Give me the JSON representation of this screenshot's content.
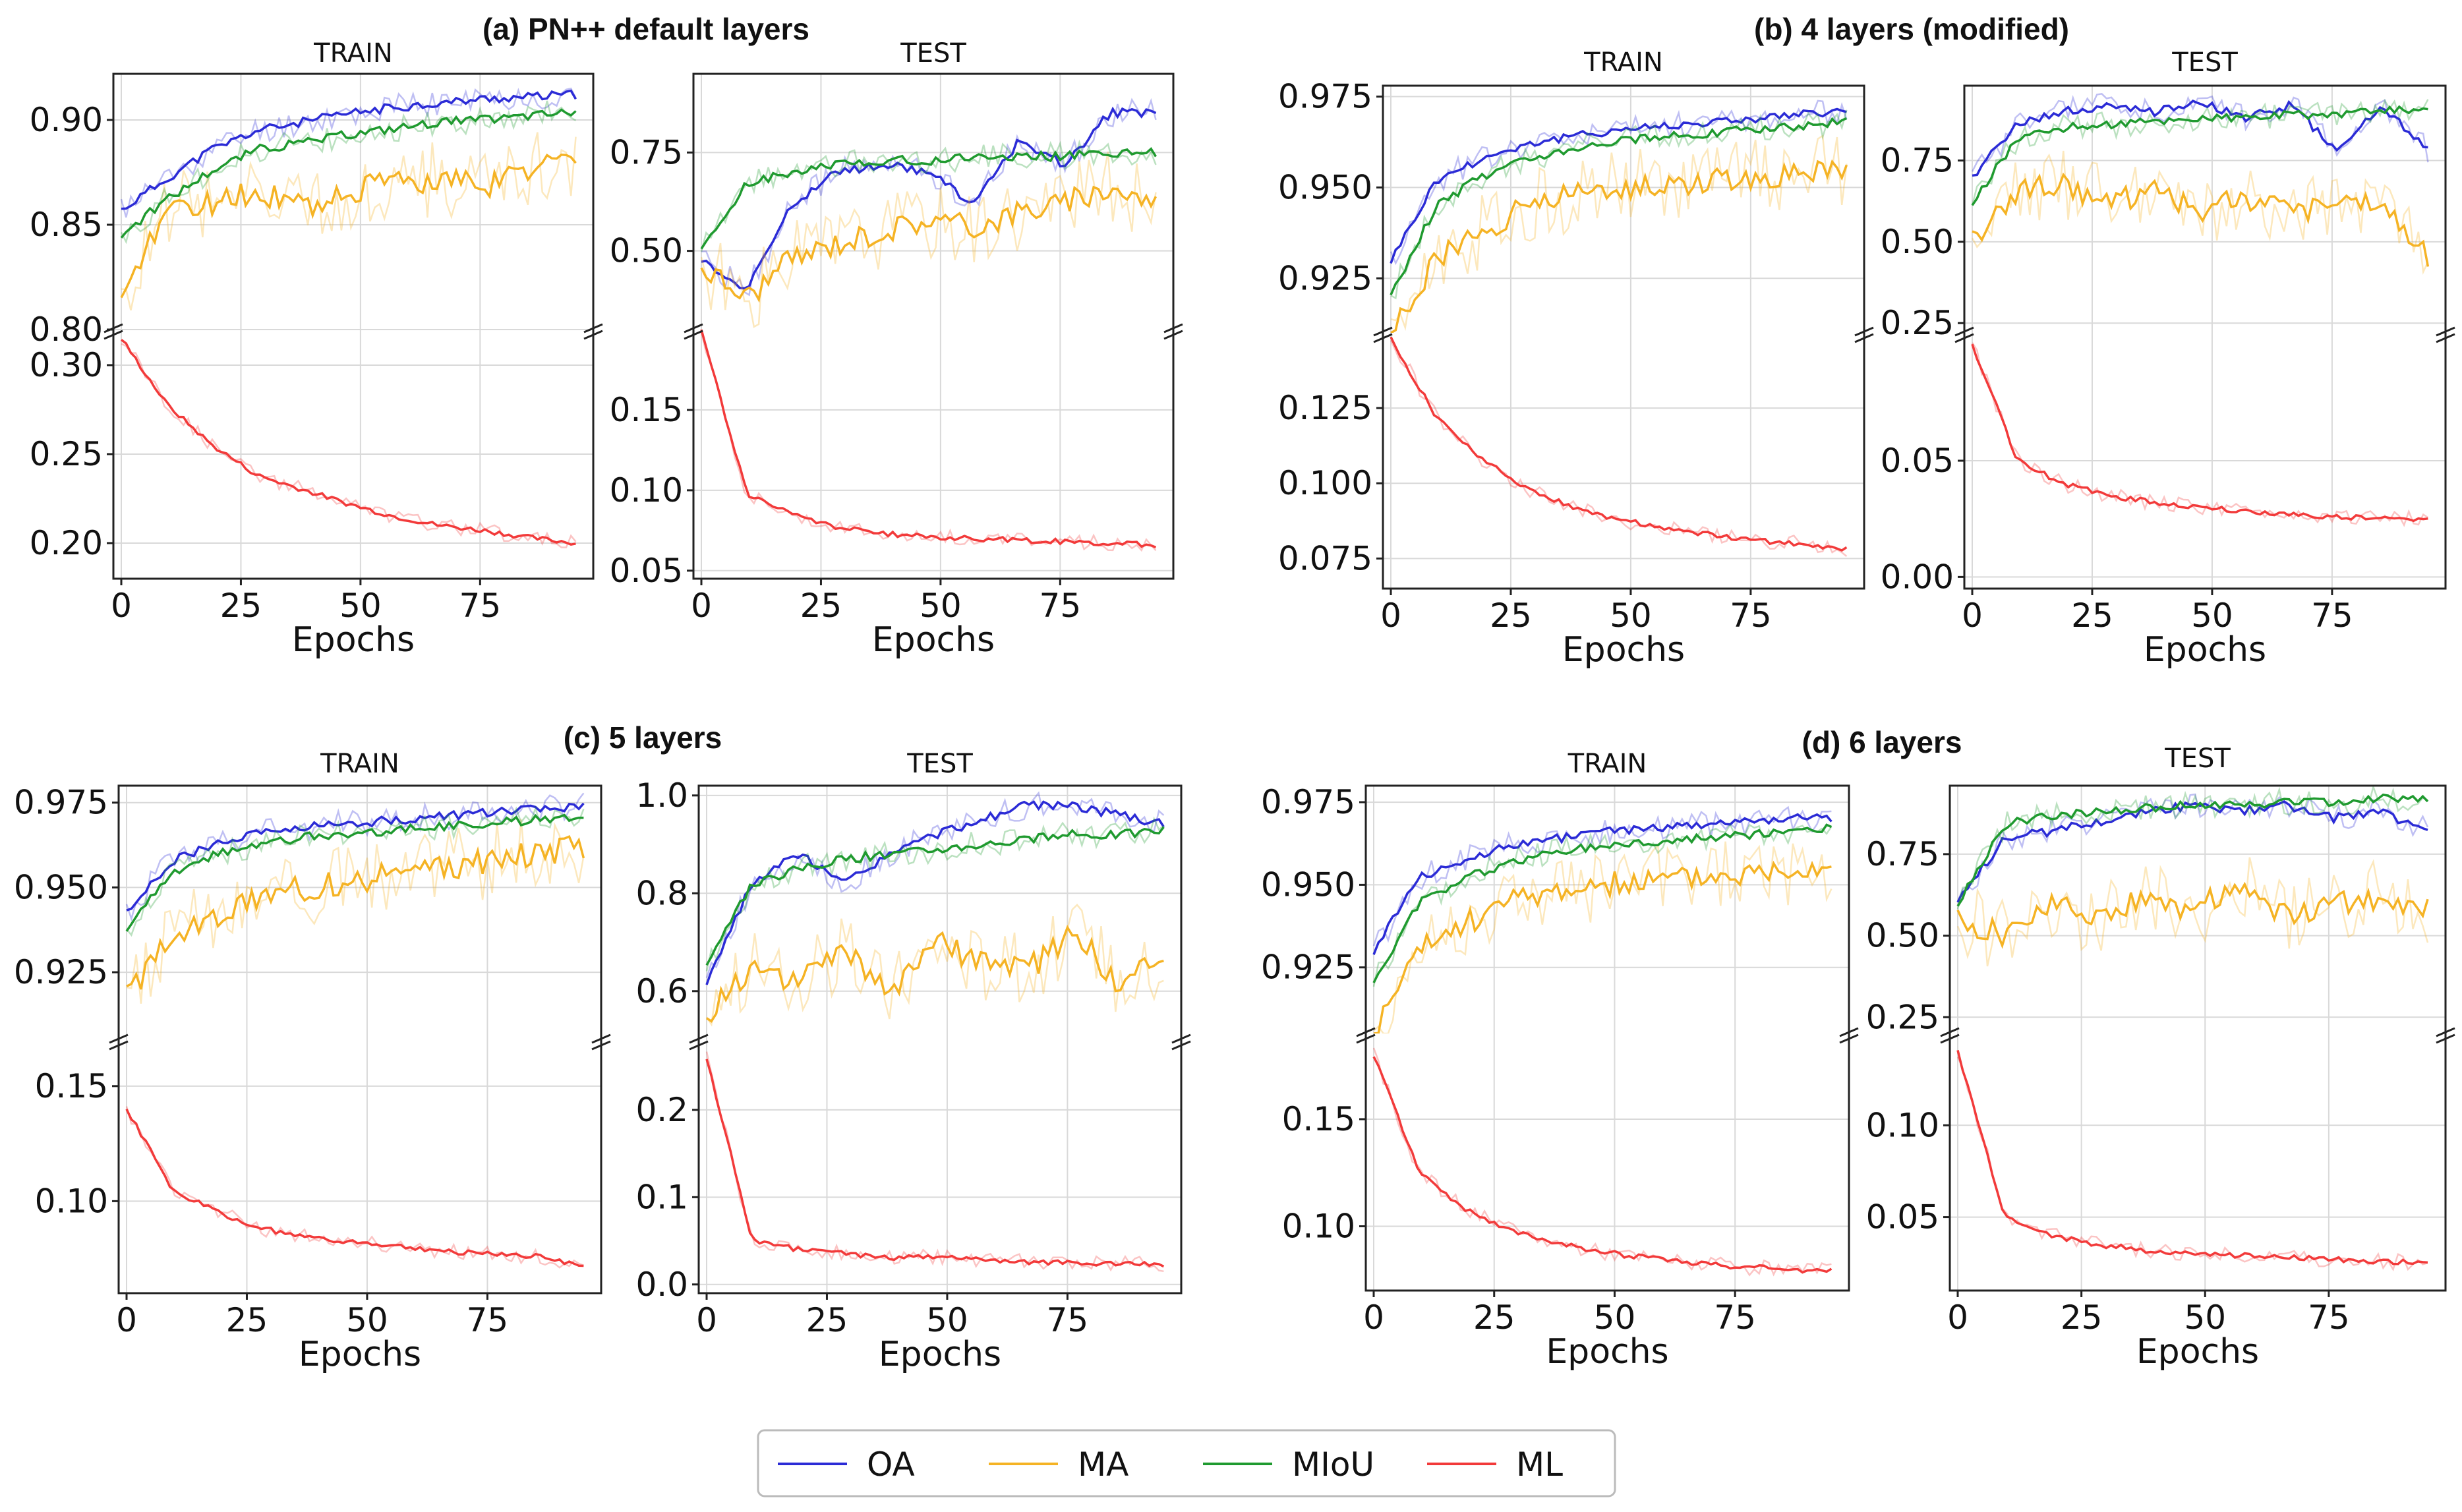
{
  "colors": {
    "OA": "#2b2bd6",
    "MA": "#f5b324",
    "MIoU": "#1f9a2f",
    "ML": "#f23a3a"
  },
  "legend": [
    "OA",
    "MA",
    "MIoU",
    "ML"
  ],
  "chart_data": [
    {
      "type": "line",
      "title": "(a) PN++ default layers",
      "xlabel": "Epochs",
      "xticks": [
        "0",
        "25",
        "50",
        "75"
      ],
      "panels": [
        {
          "title": "TRAIN",
          "top": {
            "ylim": [
              0.8,
              0.922
            ],
            "yticks": [
              "0.80",
              "0.85",
              "0.90"
            ],
            "series": [
              {
                "name": "OA",
                "values": [
                  0.857,
                  0.872,
                  0.886,
                  0.895,
                  0.899,
                  0.903,
                  0.906,
                  0.908,
                  0.91,
                  0.911,
                  0.912
                ]
              },
              {
                "name": "MA",
                "values": [
                  0.81,
                  0.858,
                  0.86,
                  0.866,
                  0.858,
                  0.866,
                  0.87,
                  0.872,
                  0.868,
                  0.878,
                  0.882
                ]
              },
              {
                "name": "MIoU",
                "values": [
                  0.845,
                  0.862,
                  0.876,
                  0.886,
                  0.889,
                  0.893,
                  0.896,
                  0.899,
                  0.9,
                  0.902,
                  0.904
                ]
              }
            ]
          },
          "bottom": {
            "ylim": [
              0.18,
              0.32
            ],
            "yticks": [
              "0.20",
              "0.25",
              "0.30"
            ],
            "series": [
              {
                "name": "ML",
                "values": [
                  0.315,
                  0.278,
                  0.255,
                  0.238,
                  0.23,
                  0.222,
                  0.215,
                  0.21,
                  0.207,
                  0.203,
                  0.2
                ]
              }
            ]
          }
        },
        {
          "title": "TEST",
          "top": {
            "ylim": [
              0.3,
              0.95
            ],
            "yticks": [
              "0.50",
              "0.75"
            ],
            "series": [
              {
                "name": "OA",
                "values": [
                  0.48,
                  0.4,
                  0.62,
                  0.7,
                  0.72,
                  0.7,
                  0.62,
                  0.78,
                  0.72,
                  0.85,
                  0.85
                ]
              },
              {
                "name": "MA",
                "values": [
                  0.46,
                  0.38,
                  0.48,
                  0.52,
                  0.55,
                  0.58,
                  0.56,
                  0.6,
                  0.62,
                  0.66,
                  0.62
                ]
              },
              {
                "name": "MIoU",
                "values": [
                  0.5,
                  0.67,
                  0.7,
                  0.72,
                  0.73,
                  0.73,
                  0.74,
                  0.74,
                  0.74,
                  0.75,
                  0.75
                ]
              }
            ]
          },
          "bottom": {
            "ylim": [
              0.045,
              0.2
            ],
            "yticks": [
              "0.05",
              "0.10",
              "0.15"
            ],
            "series": [
              {
                "name": "ML",
                "values": [
                  0.2,
                  0.098,
                  0.085,
                  0.077,
                  0.073,
                  0.071,
                  0.07,
                  0.069,
                  0.068,
                  0.067,
                  0.066
                ]
              }
            ]
          }
        }
      ]
    },
    {
      "type": "line",
      "title": "(b) 4 layers (modified)",
      "xlabel": "Epochs",
      "xticks": [
        "0",
        "25",
        "50",
        "75"
      ],
      "panels": [
        {
          "title": "TRAIN",
          "top": {
            "ylim": [
              0.91,
              0.978
            ],
            "yticks": [
              "0.925",
              "0.950",
              "0.975"
            ],
            "series": [
              {
                "name": "OA",
                "values": [
                  0.93,
                  0.952,
                  0.958,
                  0.962,
                  0.964,
                  0.966,
                  0.967,
                  0.968,
                  0.969,
                  0.97,
                  0.971
                ]
              },
              {
                "name": "MA",
                "values": [
                  0.91,
                  0.93,
                  0.938,
                  0.945,
                  0.948,
                  0.95,
                  0.951,
                  0.952,
                  0.953,
                  0.954,
                  0.955
                ]
              },
              {
                "name": "MIoU",
                "values": [
                  0.92,
                  0.945,
                  0.953,
                  0.958,
                  0.961,
                  0.963,
                  0.964,
                  0.965,
                  0.966,
                  0.967,
                  0.968
                ]
              }
            ]
          },
          "bottom": {
            "ylim": [
              0.065,
              0.15
            ],
            "yticks": [
              "0.075",
              "0.100",
              "0.125"
            ],
            "series": [
              {
                "name": "ML",
                "values": [
                  0.148,
                  0.122,
                  0.108,
                  0.098,
                  0.092,
                  0.088,
                  0.085,
                  0.083,
                  0.081,
                  0.08,
                  0.078
                ]
              }
            ]
          }
        },
        {
          "title": "TEST",
          "top": {
            "ylim": [
              0.22,
              0.98
            ],
            "yticks": [
              "0.25",
              "0.50",
              "0.75"
            ],
            "series": [
              {
                "name": "OA",
                "values": [
                  0.7,
                  0.86,
                  0.9,
                  0.92,
                  0.9,
                  0.93,
                  0.88,
                  0.92,
                  0.78,
                  0.92,
                  0.78
                ]
              },
              {
                "name": "MA",
                "values": [
                  0.5,
                  0.65,
                  0.68,
                  0.62,
                  0.66,
                  0.6,
                  0.64,
                  0.58,
                  0.64,
                  0.6,
                  0.45
                ]
              },
              {
                "name": "MIoU",
                "values": [
                  0.62,
                  0.82,
                  0.85,
                  0.86,
                  0.87,
                  0.88,
                  0.88,
                  0.89,
                  0.89,
                  0.9,
                  0.91
                ]
              }
            ]
          },
          "bottom": {
            "ylim": [
              -0.005,
              0.105
            ],
            "yticks": [
              "0.00",
              "0.05"
            ],
            "series": [
              {
                "name": "ML",
                "values": [
                  0.1,
                  0.05,
                  0.04,
                  0.035,
                  0.032,
                  0.03,
                  0.028,
                  0.027,
                  0.026,
                  0.025,
                  0.025
                ]
              }
            ]
          }
        }
      ]
    },
    {
      "type": "line",
      "title": "(c) 5 layers",
      "xlabel": "Epochs",
      "xticks": [
        "0",
        "25",
        "50",
        "75"
      ],
      "panels": [
        {
          "title": "TRAIN",
          "top": {
            "ylim": [
              0.905,
              0.98
            ],
            "yticks": [
              "0.925",
              "0.950",
              "0.975"
            ],
            "series": [
              {
                "name": "OA",
                "values": [
                  0.943,
                  0.958,
                  0.963,
                  0.966,
                  0.968,
                  0.969,
                  0.97,
                  0.971,
                  0.972,
                  0.973,
                  0.974
                ]
              },
              {
                "name": "MA",
                "values": [
                  0.918,
                  0.935,
                  0.942,
                  0.948,
                  0.95,
                  0.952,
                  0.954,
                  0.956,
                  0.958,
                  0.96,
                  0.962
                ]
              },
              {
                "name": "MIoU",
                "values": [
                  0.938,
                  0.954,
                  0.96,
                  0.963,
                  0.965,
                  0.966,
                  0.967,
                  0.968,
                  0.969,
                  0.97,
                  0.971
                ]
              }
            ]
          },
          "bottom": {
            "ylim": [
              0.06,
              0.17
            ],
            "yticks": [
              "0.10",
              "0.15"
            ],
            "series": [
              {
                "name": "ML",
                "values": [
                  0.14,
                  0.105,
                  0.095,
                  0.088,
                  0.084,
                  0.082,
                  0.08,
                  0.078,
                  0.077,
                  0.076,
                  0.072
                ]
              }
            ]
          }
        },
        {
          "title": "TEST",
          "top": {
            "ylim": [
              0.5,
              1.02
            ],
            "yticks": [
              "0.6",
              "0.8",
              "1.0"
            ],
            "series": [
              {
                "name": "OA",
                "values": [
                  0.62,
                  0.82,
                  0.88,
                  0.82,
                  0.88,
                  0.92,
                  0.95,
                  0.98,
                  0.98,
                  0.96,
                  0.94
                ]
              },
              {
                "name": "MA",
                "values": [
                  0.55,
                  0.65,
                  0.62,
                  0.68,
                  0.6,
                  0.7,
                  0.66,
                  0.64,
                  0.72,
                  0.62,
                  0.66
                ]
              },
              {
                "name": "MIoU",
                "values": [
                  0.65,
                  0.82,
                  0.85,
                  0.87,
                  0.88,
                  0.89,
                  0.9,
                  0.91,
                  0.92,
                  0.92,
                  0.93
                ]
              }
            ]
          },
          "bottom": {
            "ylim": [
              -0.01,
              0.28
            ],
            "yticks": [
              "0.0",
              "0.1",
              "0.2"
            ],
            "series": [
              {
                "name": "ML",
                "values": [
                  0.26,
                  0.05,
                  0.04,
                  0.035,
                  0.03,
                  0.032,
                  0.028,
                  0.026,
                  0.025,
                  0.024,
                  0.023
                ]
              }
            ]
          }
        }
      ]
    },
    {
      "type": "line",
      "title": "(d) 6 layers",
      "xlabel": "Epochs",
      "xticks": [
        "0",
        "25",
        "50",
        "75"
      ],
      "panels": [
        {
          "title": "TRAIN",
          "top": {
            "ylim": [
              0.905,
              0.98
            ],
            "yticks": [
              "0.925",
              "0.950",
              "0.975"
            ],
            "series": [
              {
                "name": "OA",
                "values": [
                  0.93,
                  0.952,
                  0.958,
                  0.962,
                  0.964,
                  0.966,
                  0.967,
                  0.968,
                  0.969,
                  0.97,
                  0.97
                ]
              },
              {
                "name": "MA",
                "values": [
                  0.905,
                  0.93,
                  0.938,
                  0.945,
                  0.948,
                  0.95,
                  0.951,
                  0.952,
                  0.953,
                  0.955,
                  0.956
                ]
              },
              {
                "name": "MIoU",
                "values": [
                  0.92,
                  0.945,
                  0.952,
                  0.957,
                  0.96,
                  0.962,
                  0.963,
                  0.964,
                  0.965,
                  0.966,
                  0.967
                ]
              }
            ]
          },
          "bottom": {
            "ylim": [
              0.07,
              0.19
            ],
            "yticks": [
              "0.10",
              "0.15"
            ],
            "series": [
              {
                "name": "ML",
                "values": [
                  0.18,
                  0.125,
                  0.108,
                  0.098,
                  0.092,
                  0.088,
                  0.085,
                  0.083,
                  0.081,
                  0.08,
                  0.079
                ]
              }
            ]
          }
        },
        {
          "title": "TEST",
          "top": {
            "ylim": [
              0.2,
              0.96
            ],
            "yticks": [
              "0.25",
              "0.50",
              "0.75"
            ],
            "series": [
              {
                "name": "OA",
                "values": [
                  0.6,
                  0.8,
                  0.82,
                  0.85,
                  0.88,
                  0.9,
                  0.88,
                  0.9,
                  0.86,
                  0.88,
                  0.82
                ]
              },
              {
                "name": "MA",
                "values": [
                  0.55,
                  0.5,
                  0.6,
                  0.55,
                  0.62,
                  0.58,
                  0.65,
                  0.56,
                  0.6,
                  0.62,
                  0.58
                ]
              },
              {
                "name": "MIoU",
                "values": [
                  0.6,
                  0.84,
                  0.87,
                  0.88,
                  0.89,
                  0.9,
                  0.9,
                  0.91,
                  0.91,
                  0.92,
                  0.92
                ]
              }
            ]
          },
          "bottom": {
            "ylim": [
              0.01,
              0.15
            ],
            "yticks": [
              "0.05",
              "0.10"
            ],
            "series": [
              {
                "name": "ML",
                "values": [
                  0.14,
                  0.05,
                  0.04,
                  0.035,
                  0.032,
                  0.03,
                  0.029,
                  0.028,
                  0.027,
                  0.026,
                  0.025
                ]
              }
            ]
          }
        }
      ]
    }
  ]
}
